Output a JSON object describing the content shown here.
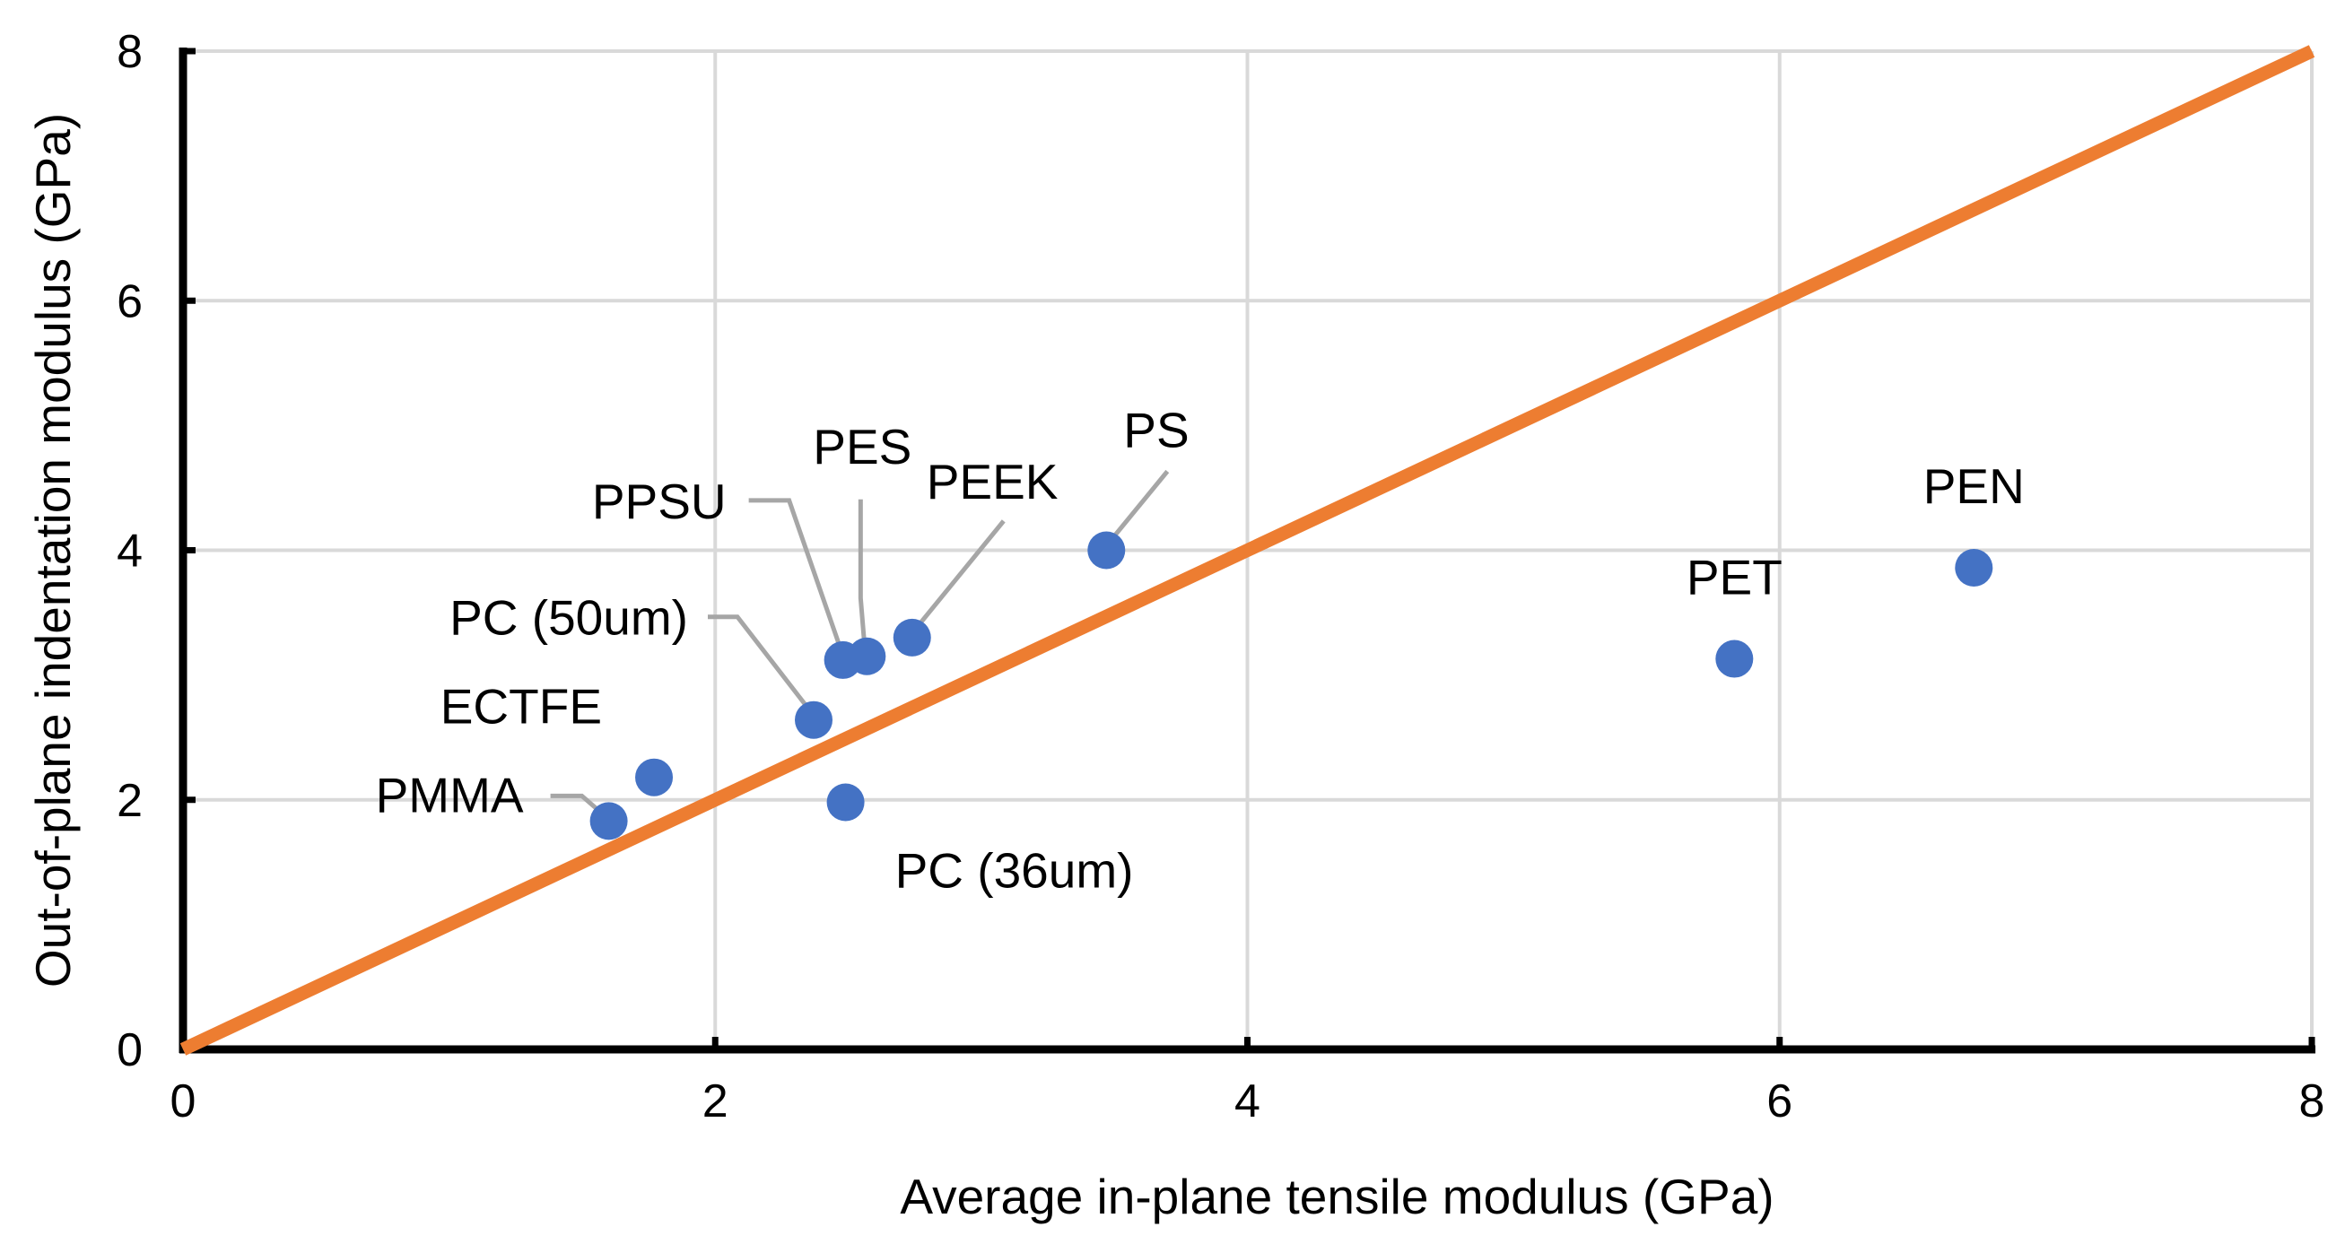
{
  "chart_data": {
    "type": "scatter",
    "title": "",
    "xlabel": "Average in-plane tensile modulus (GPa)",
    "ylabel": "Out-of-plane indentation modulus (GPa)",
    "xlim": [
      0,
      8
    ],
    "ylim": [
      0,
      8
    ],
    "xticks": [
      "0",
      "2",
      "4",
      "6",
      "8"
    ],
    "yticks": [
      "0",
      "2",
      "4",
      "6",
      "8"
    ],
    "grid": true,
    "legend": "none",
    "colors": {
      "points": "#4472c4",
      "reference_line": "#ed7d31",
      "grid": "#d9d9d9",
      "leader": "#a6a6a6"
    },
    "points": [
      {
        "label": "PMMA",
        "x": 1.6,
        "y": 1.83
      },
      {
        "label": "ECTFE",
        "x": 1.77,
        "y": 2.18
      },
      {
        "label": "PC (50um)",
        "x": 2.37,
        "y": 2.64
      },
      {
        "label": "PC (36um)",
        "x": 2.49,
        "y": 1.98
      },
      {
        "label": "PPSU",
        "x": 2.48,
        "y": 3.12
      },
      {
        "label": "PES",
        "x": 2.57,
        "y": 3.15
      },
      {
        "label": "PEEK",
        "x": 2.74,
        "y": 3.3
      },
      {
        "label": "PS",
        "x": 3.47,
        "y": 4.0
      },
      {
        "label": "PET",
        "x": 5.83,
        "y": 3.13
      },
      {
        "label": "PEN",
        "x": 6.73,
        "y": 3.86
      }
    ],
    "reference_line": {
      "x": [
        0,
        8
      ],
      "y": [
        0,
        8
      ]
    }
  }
}
